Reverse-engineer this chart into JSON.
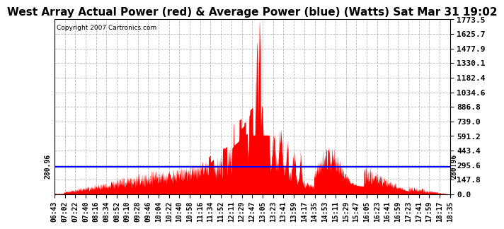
{
  "title": "West Array Actual Power (red) & Average Power (blue) (Watts) Sat Mar 31 19:02",
  "copyright": "Copyright 2007 Cartronics.com",
  "avg_power": 280.96,
  "ymax": 1773.5,
  "ymin": 0.0,
  "yticks": [
    0.0,
    147.8,
    295.6,
    443.4,
    591.2,
    739.0,
    886.8,
    1034.6,
    1182.4,
    1330.1,
    1477.9,
    1625.7,
    1773.5
  ],
  "ytick_labels": [
    "0.0",
    "147.8",
    "295.6",
    "443.4",
    "591.2",
    "739.0",
    "886.8",
    "1034.6",
    "1182.4",
    "1330.1",
    "1477.9",
    "1625.7",
    "1773.5"
  ],
  "bg_color": "#ffffff",
  "plot_bg_color": "#ffffff",
  "grid_color": "#b0b0b0",
  "title_fontsize": 11,
  "xtick_labels": [
    "06:43",
    "07:02",
    "07:22",
    "07:40",
    "08:16",
    "08:34",
    "08:52",
    "09:10",
    "09:28",
    "09:46",
    "10:04",
    "10:22",
    "10:40",
    "10:58",
    "11:16",
    "11:34",
    "11:52",
    "12:11",
    "12:29",
    "12:47",
    "13:05",
    "13:23",
    "13:41",
    "13:59",
    "14:17",
    "14:35",
    "14:53",
    "15:11",
    "15:29",
    "15:47",
    "16:05",
    "16:23",
    "16:41",
    "16:59",
    "17:23",
    "17:41",
    "17:59",
    "18:17",
    "18:35"
  ]
}
